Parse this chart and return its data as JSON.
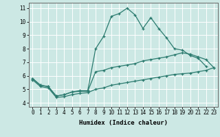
{
  "title": "",
  "xlabel": "Humidex (Indice chaleur)",
  "ylabel": "",
  "bg_color": "#cce8e4",
  "grid_color": "#ffffff",
  "line_color": "#2a7a6e",
  "xlim": [
    -0.5,
    23.5
  ],
  "ylim": [
    3.7,
    11.4
  ],
  "xticks": [
    0,
    1,
    2,
    3,
    4,
    5,
    6,
    7,
    8,
    9,
    10,
    11,
    12,
    13,
    14,
    15,
    16,
    17,
    18,
    19,
    20,
    21,
    22,
    23
  ],
  "yticks": [
    4,
    5,
    6,
    7,
    8,
    9,
    10,
    11
  ],
  "line1_y": [
    5.8,
    5.3,
    5.2,
    4.5,
    4.6,
    4.8,
    4.9,
    4.9,
    8.0,
    8.9,
    10.4,
    10.6,
    11.0,
    10.5,
    9.5,
    10.3,
    9.5,
    8.8,
    8.0,
    7.9,
    7.5,
    7.3,
    6.7,
    null
  ],
  "line2_y": [
    5.8,
    5.3,
    5.2,
    4.5,
    4.6,
    4.8,
    4.85,
    4.85,
    6.3,
    6.4,
    6.6,
    6.7,
    6.8,
    6.9,
    7.1,
    7.2,
    7.3,
    7.4,
    7.55,
    7.7,
    7.6,
    7.4,
    7.2,
    6.6
  ],
  "line3_y": [
    5.7,
    5.2,
    5.1,
    4.4,
    4.45,
    4.6,
    4.7,
    4.75,
    5.0,
    5.1,
    5.3,
    5.4,
    5.5,
    5.6,
    5.7,
    5.8,
    5.9,
    6.0,
    6.1,
    6.15,
    6.2,
    6.3,
    6.4,
    6.6
  ],
  "tick_fontsize": 5.5,
  "xlabel_fontsize": 6.5,
  "marker_size": 3,
  "linewidth": 0.9
}
